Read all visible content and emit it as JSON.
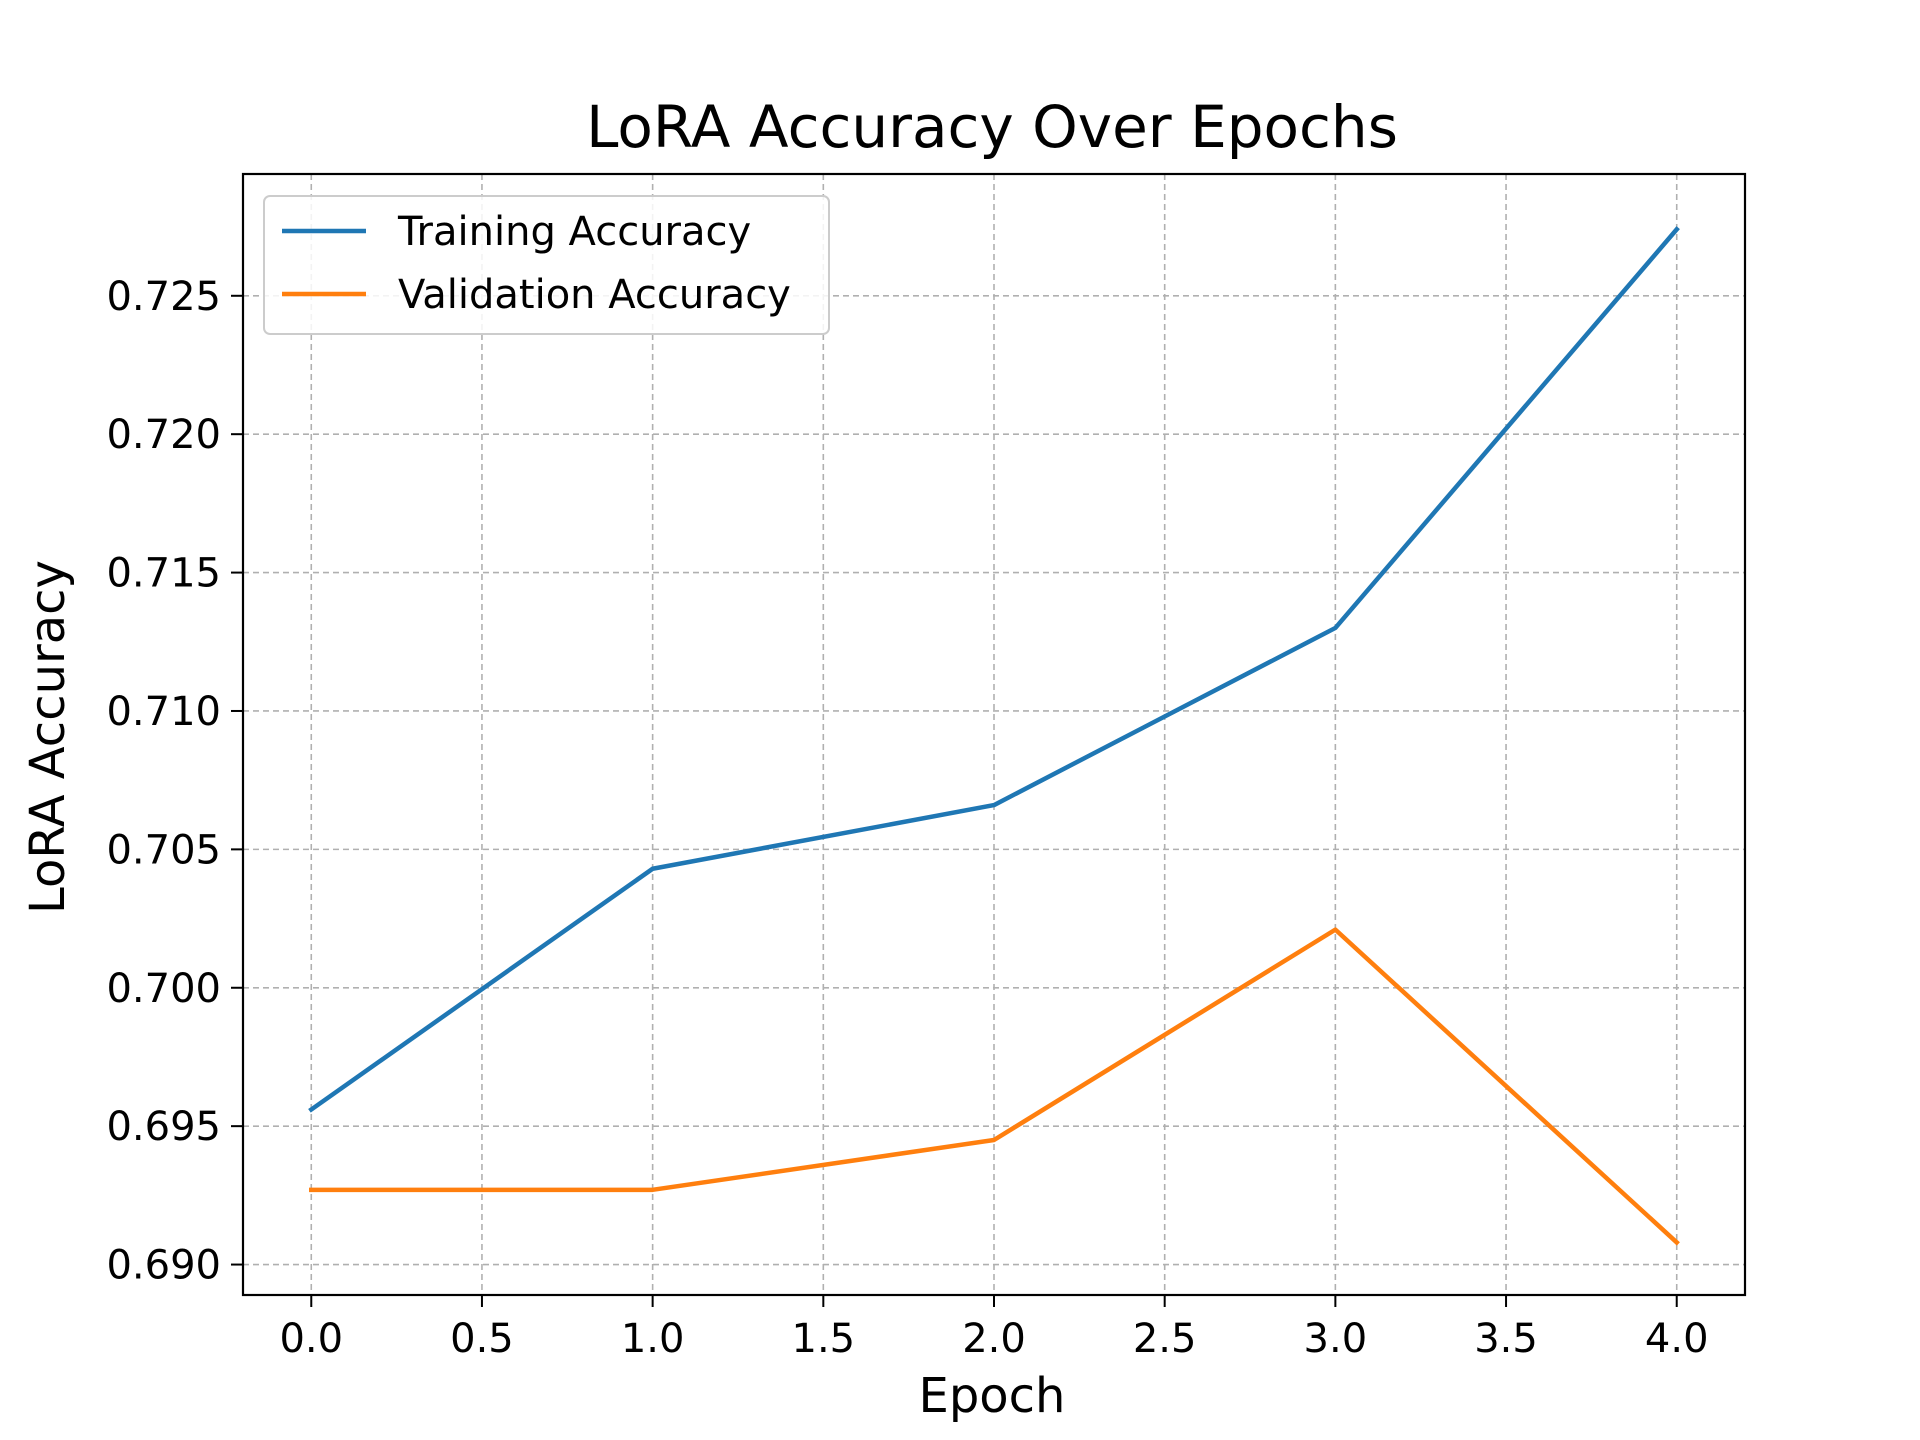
{
  "chart_data": {
    "type": "line",
    "title": "LoRA Accuracy Over Epochs",
    "xlabel": "Epoch",
    "ylabel": "LoRA Accuracy",
    "x": [
      0,
      1,
      2,
      3,
      4
    ],
    "series": [
      {
        "name": "Training Accuracy",
        "color": "#1f77b4",
        "values": [
          0.6956,
          0.7043,
          0.7066,
          0.713,
          0.7274
        ]
      },
      {
        "name": "Validation Accuracy",
        "color": "#ff7f0e",
        "values": [
          0.6927,
          0.6927,
          0.6945,
          0.7021,
          0.6908
        ]
      }
    ],
    "xlim": [
      -0.2,
      4.2
    ],
    "ylim": [
      0.6889,
      0.7294
    ],
    "xticks": [
      0.0,
      0.5,
      1.0,
      1.5,
      2.0,
      2.5,
      3.0,
      3.5,
      4.0
    ],
    "xtick_labels": [
      "0.0",
      "0.5",
      "1.0",
      "1.5",
      "2.0",
      "2.5",
      "3.0",
      "3.5",
      "4.0"
    ],
    "yticks": [
      0.69,
      0.695,
      0.7,
      0.705,
      0.71,
      0.715,
      0.72,
      0.725
    ],
    "ytick_labels": [
      "0.690",
      "0.695",
      "0.700",
      "0.705",
      "0.710",
      "0.715",
      "0.720",
      "0.725"
    ],
    "grid": true,
    "legend": "top-left"
  }
}
